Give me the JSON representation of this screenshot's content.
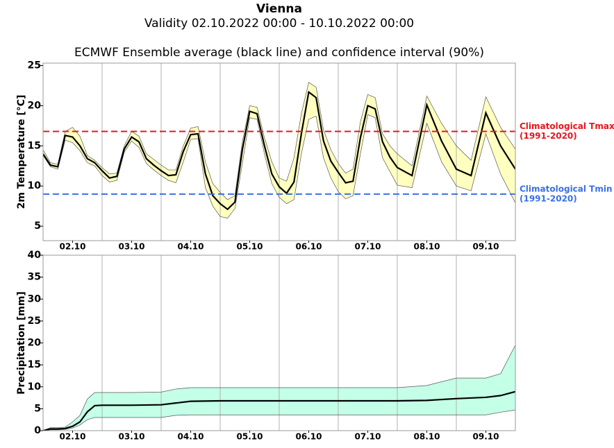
{
  "chart_data": [
    {
      "type": "band-line",
      "title": "Vienna",
      "subtitle": "Validity 02.10.2022 00:00 - 10.10.2022 00:00",
      "caption": "ECMWF Ensemble average (black line) and confidence interval (90%)",
      "y_label": "2m Temperature [°C]",
      "x": [
        0,
        3,
        6,
        9,
        12,
        15,
        18,
        21,
        24,
        27,
        30,
        33,
        36,
        39,
        42,
        45,
        48,
        51,
        54,
        57,
        60,
        63,
        66,
        69,
        72,
        75,
        78,
        81,
        84,
        87,
        90,
        93,
        96,
        99,
        102,
        105,
        108,
        111,
        114,
        117,
        120,
        123,
        126,
        129,
        132,
        135,
        138,
        141,
        144,
        150,
        156,
        162,
        168,
        174,
        180,
        186,
        192
      ],
      "values": [
        14.0,
        12.6,
        12.4,
        16.3,
        16.1,
        15.0,
        13.4,
        12.9,
        11.9,
        11.0,
        11.2,
        14.6,
        16.1,
        15.5,
        13.4,
        12.6,
        11.9,
        11.3,
        11.4,
        14.3,
        16.4,
        16.5,
        11.5,
        8.8,
        7.8,
        7.1,
        8.0,
        14.5,
        19.3,
        19.0,
        15.0,
        11.5,
        9.9,
        9.1,
        10.5,
        16.5,
        21.7,
        21.0,
        15.6,
        13.1,
        11.7,
        10.4,
        10.6,
        16.0,
        20.0,
        19.6,
        15.5,
        13.6,
        12.3,
        11.3,
        20.1,
        15.6,
        12.1,
        11.3,
        19.1,
        15.0,
        12.1
      ],
      "upper": [
        14.5,
        12.9,
        12.7,
        16.8,
        17.3,
        16.2,
        13.8,
        13.2,
        12.3,
        11.5,
        11.6,
        15.0,
        16.8,
        16.2,
        14.0,
        13.3,
        12.6,
        12.0,
        12.0,
        15.0,
        17.2,
        17.4,
        13.0,
        10.3,
        9.2,
        8.3,
        8.8,
        15.5,
        20.0,
        19.8,
        16.0,
        13.0,
        11.0,
        10.6,
        13.5,
        19.0,
        22.9,
        22.3,
        17.0,
        14.5,
        12.8,
        11.6,
        12.1,
        18.0,
        21.4,
        21.0,
        16.5,
        15.0,
        14.0,
        12.5,
        21.2,
        17.8,
        15.0,
        13.2,
        21.1,
        17.3,
        14.6
      ],
      "lower": [
        13.8,
        12.4,
        12.1,
        15.7,
        15.4,
        14.4,
        12.9,
        12.5,
        11.3,
        10.5,
        10.7,
        14.2,
        15.6,
        14.8,
        12.8,
        12.0,
        11.3,
        10.7,
        10.4,
        13.0,
        15.8,
        15.9,
        9.8,
        7.5,
        6.2,
        6.0,
        7.2,
        12.8,
        18.5,
        18.3,
        14.0,
        10.3,
        8.6,
        7.8,
        8.3,
        14.0,
        18.3,
        18.7,
        13.5,
        11.0,
        9.3,
        8.4,
        8.8,
        14.0,
        18.9,
        18.5,
        13.5,
        11.8,
        10.1,
        9.8,
        17.8,
        13.0,
        10.0,
        9.4,
        16.5,
        11.5,
        7.9
      ],
      "color": "#000000",
      "band_color": "#ffffc0",
      "hlines": [
        {
          "value": 16.8,
          "color": "#e8141c",
          "label": [
            "Climatological Tmax",
            "(1991-2020)"
          ]
        },
        {
          "value": 9.0,
          "color": "#3a6ee8",
          "label": [
            "Climatological Tmin",
            "(1991-2020)"
          ]
        }
      ],
      "xlim": [
        0,
        192
      ],
      "xticks": [
        {
          "value": 12,
          "label": "02.10"
        },
        {
          "value": 36,
          "label": "03.10"
        },
        {
          "value": 60,
          "label": "04.10"
        },
        {
          "value": 84,
          "label": "05.10"
        },
        {
          "value": 108,
          "label": "06.10"
        },
        {
          "value": 132,
          "label": "07.10"
        },
        {
          "value": 156,
          "label": "08.10"
        },
        {
          "value": 180,
          "label": "09.10"
        }
      ],
      "xgrid": [
        24,
        48,
        72,
        96,
        120,
        144,
        168
      ],
      "ylim": [
        3.2,
        25.3
      ],
      "yticks": [
        5,
        10,
        15,
        20,
        25
      ]
    },
    {
      "type": "band-line",
      "y_label": "Precipitation [mm]",
      "x": [
        0,
        3,
        6,
        9,
        12,
        15,
        18,
        21,
        24,
        36,
        48,
        54,
        60,
        72,
        84,
        96,
        108,
        120,
        132,
        144,
        156,
        168,
        180,
        186,
        192
      ],
      "values": [
        0,
        0.4,
        0.4,
        0.5,
        1.0,
        2.0,
        4.3,
        5.7,
        5.8,
        5.8,
        5.9,
        6.3,
        6.7,
        6.8,
        6.8,
        6.8,
        6.8,
        6.8,
        6.8,
        6.8,
        6.9,
        7.3,
        7.6,
        8.0,
        8.9
      ],
      "upper": [
        0,
        0.7,
        0.7,
        0.8,
        2.0,
        3.5,
        7.2,
        8.7,
        8.7,
        8.7,
        8.8,
        9.5,
        9.8,
        9.8,
        9.8,
        9.8,
        9.8,
        9.8,
        9.8,
        9.8,
        10.3,
        12.0,
        12.0,
        13.0,
        19.5
      ],
      "lower": [
        0,
        0.2,
        0.2,
        0.3,
        0.6,
        1.3,
        2.5,
        3.0,
        3.0,
        3.0,
        3.0,
        3.5,
        3.6,
        3.6,
        3.6,
        3.6,
        3.6,
        3.6,
        3.6,
        3.6,
        3.6,
        3.6,
        3.6,
        4.2,
        4.7
      ],
      "color": "#000000",
      "band_color": "#c4ffe8",
      "xlim": [
        0,
        192
      ],
      "xticks": [
        {
          "value": 12,
          "label": "02.10"
        },
        {
          "value": 36,
          "label": "03.10"
        },
        {
          "value": 60,
          "label": "04.10"
        },
        {
          "value": 84,
          "label": "05.10"
        },
        {
          "value": 108,
          "label": "06.10"
        },
        {
          "value": 132,
          "label": "07.10"
        },
        {
          "value": 156,
          "label": "08.10"
        },
        {
          "value": 180,
          "label": "09.10"
        }
      ],
      "xgrid": [
        24,
        48,
        72,
        96,
        120,
        144,
        168
      ],
      "ylim": [
        0,
        40
      ],
      "yticks": [
        0,
        5,
        10,
        15,
        20,
        25,
        30,
        35,
        40
      ]
    }
  ]
}
